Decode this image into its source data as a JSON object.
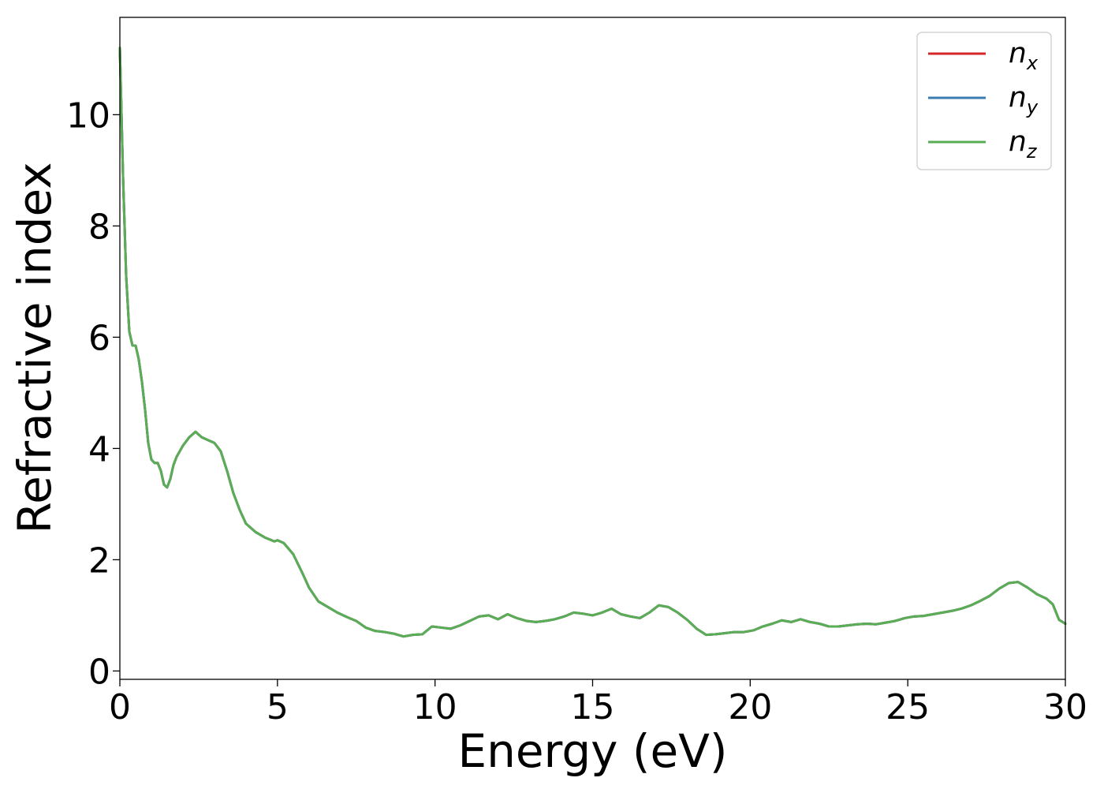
{
  "chart_data": {
    "type": "line",
    "title": "",
    "xlabel": "Energy (eV)",
    "ylabel": "Refractive index",
    "xlim": [
      0,
      30
    ],
    "ylim": [
      -0.15,
      11.75
    ],
    "x_ticks": [
      0,
      5,
      10,
      15,
      20,
      25,
      30
    ],
    "y_ticks": [
      0,
      2,
      4,
      6,
      8,
      10
    ],
    "grid": false,
    "legend_position": "top-right",
    "legend": [
      {
        "base": "n",
        "sub": "x",
        "color": "#d62728"
      },
      {
        "base": "n",
        "sub": "y",
        "color": "#3a7bb0"
      },
      {
        "base": "n",
        "sub": "z",
        "color": "#5aad55"
      }
    ],
    "x": [
      0,
      0.1,
      0.2,
      0.3,
      0.4,
      0.5,
      0.6,
      0.7,
      0.8,
      0.9,
      1.0,
      1.1,
      1.2,
      1.3,
      1.4,
      1.5,
      1.6,
      1.7,
      1.8,
      1.9,
      2.0,
      2.2,
      2.4,
      2.6,
      2.8,
      3.0,
      3.2,
      3.4,
      3.6,
      3.8,
      4.0,
      4.3,
      4.6,
      4.9,
      5.0,
      5.2,
      5.5,
      5.8,
      6.0,
      6.3,
      6.6,
      6.9,
      7.2,
      7.5,
      7.8,
      8.1,
      8.4,
      8.7,
      9.0,
      9.3,
      9.6,
      9.9,
      10.2,
      10.5,
      10.8,
      11.1,
      11.4,
      11.7,
      12.0,
      12.3,
      12.6,
      12.9,
      13.2,
      13.5,
      13.8,
      14.1,
      14.4,
      14.7,
      15.0,
      15.3,
      15.6,
      15.9,
      16.2,
      16.5,
      16.8,
      17.1,
      17.4,
      17.7,
      18.0,
      18.3,
      18.6,
      18.9,
      19.2,
      19.5,
      19.8,
      20.1,
      20.4,
      20.7,
      21.0,
      21.3,
      21.6,
      21.9,
      22.2,
      22.5,
      22.8,
      23.1,
      23.4,
      23.7,
      24.0,
      24.3,
      24.6,
      24.9,
      25.2,
      25.5,
      25.8,
      26.1,
      26.4,
      26.7,
      27.0,
      27.3,
      27.6,
      27.9,
      28.2,
      28.5,
      28.8,
      29.1,
      29.4,
      29.6,
      29.8,
      30.0
    ],
    "series": [
      {
        "name": "n_x",
        "color": "#d62728",
        "values": [
          11.2,
          8.9,
          7.1,
          6.1,
          5.85,
          5.85,
          5.6,
          5.2,
          4.7,
          4.1,
          3.8,
          3.74,
          3.74,
          3.6,
          3.35,
          3.3,
          3.45,
          3.7,
          3.85,
          3.95,
          4.05,
          4.2,
          4.3,
          4.2,
          4.15,
          4.1,
          3.95,
          3.6,
          3.2,
          2.9,
          2.65,
          2.5,
          2.4,
          2.33,
          2.35,
          2.3,
          2.1,
          1.75,
          1.5,
          1.25,
          1.15,
          1.05,
          0.97,
          0.9,
          0.78,
          0.72,
          0.7,
          0.67,
          0.62,
          0.65,
          0.66,
          0.8,
          0.78,
          0.76,
          0.82,
          0.9,
          0.98,
          1.0,
          0.93,
          1.02,
          0.95,
          0.9,
          0.88,
          0.9,
          0.93,
          0.98,
          1.05,
          1.03,
          1.0,
          1.05,
          1.12,
          1.02,
          0.98,
          0.95,
          1.05,
          1.18,
          1.15,
          1.05,
          0.92,
          0.76,
          0.65,
          0.66,
          0.68,
          0.7,
          0.7,
          0.73,
          0.8,
          0.85,
          0.91,
          0.88,
          0.93,
          0.88,
          0.85,
          0.8,
          0.8,
          0.82,
          0.84,
          0.85,
          0.84,
          0.87,
          0.9,
          0.95,
          0.98,
          0.99,
          1.02,
          1.05,
          1.08,
          1.12,
          1.18,
          1.26,
          1.35,
          1.48,
          1.58,
          1.6,
          1.5,
          1.38,
          1.3,
          1.2,
          0.92,
          0.85
        ]
      },
      {
        "name": "n_y",
        "color": "#3a7bb0",
        "values": [
          11.2,
          8.9,
          7.1,
          6.1,
          5.85,
          5.85,
          5.6,
          5.2,
          4.7,
          4.1,
          3.8,
          3.74,
          3.74,
          3.6,
          3.35,
          3.3,
          3.45,
          3.7,
          3.85,
          3.95,
          4.05,
          4.2,
          4.3,
          4.2,
          4.15,
          4.1,
          3.95,
          3.6,
          3.2,
          2.9,
          2.65,
          2.5,
          2.4,
          2.33,
          2.35,
          2.3,
          2.1,
          1.75,
          1.5,
          1.25,
          1.15,
          1.05,
          0.97,
          0.9,
          0.78,
          0.72,
          0.7,
          0.67,
          0.62,
          0.65,
          0.66,
          0.8,
          0.78,
          0.76,
          0.82,
          0.9,
          0.98,
          1.0,
          0.93,
          1.02,
          0.95,
          0.9,
          0.88,
          0.9,
          0.93,
          0.98,
          1.05,
          1.03,
          1.0,
          1.05,
          1.12,
          1.02,
          0.98,
          0.95,
          1.05,
          1.18,
          1.15,
          1.05,
          0.92,
          0.76,
          0.65,
          0.66,
          0.68,
          0.7,
          0.7,
          0.73,
          0.8,
          0.85,
          0.91,
          0.88,
          0.93,
          0.88,
          0.85,
          0.8,
          0.8,
          0.82,
          0.84,
          0.85,
          0.84,
          0.87,
          0.9,
          0.95,
          0.98,
          0.99,
          1.02,
          1.05,
          1.08,
          1.12,
          1.18,
          1.26,
          1.35,
          1.48,
          1.58,
          1.6,
          1.5,
          1.38,
          1.3,
          1.2,
          0.92,
          0.85
        ]
      },
      {
        "name": "n_z",
        "color": "#5aad55",
        "values": [
          11.2,
          8.9,
          7.1,
          6.1,
          5.85,
          5.85,
          5.6,
          5.2,
          4.7,
          4.1,
          3.8,
          3.74,
          3.74,
          3.6,
          3.35,
          3.3,
          3.45,
          3.7,
          3.85,
          3.95,
          4.05,
          4.2,
          4.3,
          4.2,
          4.15,
          4.1,
          3.95,
          3.6,
          3.2,
          2.9,
          2.65,
          2.5,
          2.4,
          2.33,
          2.35,
          2.3,
          2.1,
          1.75,
          1.5,
          1.25,
          1.15,
          1.05,
          0.97,
          0.9,
          0.78,
          0.72,
          0.7,
          0.67,
          0.62,
          0.65,
          0.66,
          0.8,
          0.78,
          0.76,
          0.82,
          0.9,
          0.98,
          1.0,
          0.93,
          1.02,
          0.95,
          0.9,
          0.88,
          0.9,
          0.93,
          0.98,
          1.05,
          1.03,
          1.0,
          1.05,
          1.12,
          1.02,
          0.98,
          0.95,
          1.05,
          1.18,
          1.15,
          1.05,
          0.92,
          0.76,
          0.65,
          0.66,
          0.68,
          0.7,
          0.7,
          0.73,
          0.8,
          0.85,
          0.91,
          0.88,
          0.93,
          0.88,
          0.85,
          0.8,
          0.8,
          0.82,
          0.84,
          0.85,
          0.84,
          0.87,
          0.9,
          0.95,
          0.98,
          0.99,
          1.02,
          1.05,
          1.08,
          1.12,
          1.18,
          1.26,
          1.35,
          1.48,
          1.58,
          1.6,
          1.5,
          1.38,
          1.3,
          1.2,
          0.92,
          0.85
        ]
      }
    ]
  }
}
